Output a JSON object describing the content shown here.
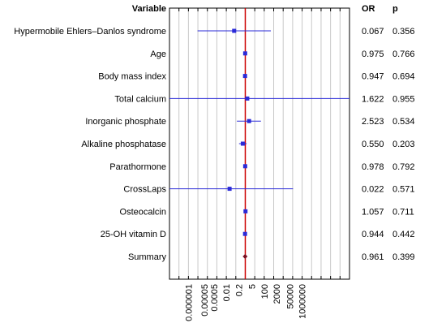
{
  "chart_data": {
    "type": "forest",
    "columns": {
      "variable_header": "Variable",
      "or_header": "OR",
      "p_header": "p"
    },
    "x_scale": "log",
    "x_tick_labels": [
      "0.000001",
      "0.00005",
      "0.0005",
      "0.01",
      "0.2",
      "5",
      "100",
      "2000",
      "50000",
      "1000000"
    ],
    "x_tick_values": [
      1e-06,
      5e-05,
      0.0005,
      0.01,
      0.2,
      5,
      100,
      2000,
      50000,
      1000000
    ],
    "xlim": [
      1e-08,
      100000000000
    ],
    "reference_line": 1,
    "rows": [
      {
        "label": "Hypermobile Ehlers–Danlos syndrome",
        "or": "0.067",
        "p": "0.356",
        "est": 0.067,
        "lo": 9.1e-06,
        "hi": 500,
        "marker": "square"
      },
      {
        "label": "Age",
        "or": "0.975",
        "p": "0.766",
        "est": 0.975,
        "lo": 0.82,
        "hi": 1.16,
        "marker": "square"
      },
      {
        "label": "Body mass index",
        "or": "0.947",
        "p": "0.694",
        "est": 0.947,
        "lo": 0.7,
        "hi": 1.28,
        "marker": "square"
      },
      {
        "label": "Total calcium",
        "or": "1.622",
        "p": "0.955",
        "est": 1.622,
        "lo": 6.8e-09,
        "hi": 390000000000,
        "marker": "square"
      },
      {
        "label": "Inorganic phosphate",
        "or": "2.523",
        "p": "0.534",
        "est": 2.523,
        "lo": 0.13,
        "hi": 45,
        "marker": "square"
      },
      {
        "label": "Alkaline phosphatase",
        "or": "0.550",
        "p": "0.203",
        "est": 0.55,
        "lo": 0.22,
        "hi": 1.38,
        "marker": "square"
      },
      {
        "label": "Parathormone",
        "or": "0.978",
        "p": "0.792",
        "est": 0.978,
        "lo": 0.83,
        "hi": 1.15,
        "marker": "square"
      },
      {
        "label": "CrossLaps",
        "or": "0.022",
        "p": "0.571",
        "est": 0.022,
        "lo": 4.5e-09,
        "hi": 110000,
        "marker": "square"
      },
      {
        "label": "Osteocalcin",
        "or": "1.057",
        "p": "0.711",
        "est": 1.057,
        "lo": 0.79,
        "hi": 1.41,
        "marker": "square"
      },
      {
        "label": "25-OH vitamin D",
        "or": "0.944",
        "p": "0.442",
        "est": 0.944,
        "lo": 0.81,
        "hi": 1.1,
        "marker": "square"
      },
      {
        "label": "Summary",
        "or": "0.961",
        "p": "0.399",
        "est": 0.961,
        "lo": 0.88,
        "hi": 1.05,
        "marker": "diamond"
      }
    ],
    "colors": {
      "ci_line": "#2b2bd8",
      "marker": "#2b2bd8",
      "summary_marker": "#7a1020",
      "reference_line": "#cc0000",
      "grid": "#c8c8c8",
      "axis": "#000000"
    },
    "grid": true
  }
}
